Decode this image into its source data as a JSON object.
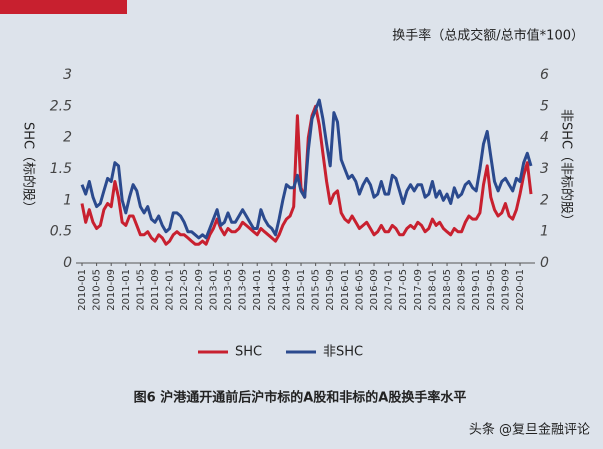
{
  "chart_data": {
    "type": "line",
    "title": "图6 沪港通开通前后沪市标的A股和非标的A股换手率水平",
    "subtitle": "换手率（总成交额/总市值*100）",
    "ylabel": "SHC（标的股）",
    "y2label": "非SHC（非标的股）",
    "categories": [
      "2010-01",
      null,
      null,
      null,
      "2010-05",
      null,
      null,
      null,
      "2010-09",
      null,
      null,
      null,
      "2011-01",
      null,
      null,
      null,
      "2011-05",
      null,
      null,
      null,
      "2011-09",
      null,
      null,
      null,
      "2012-01",
      null,
      null,
      null,
      "2012-05",
      null,
      null,
      null,
      "2012-09",
      null,
      null,
      null,
      "2013-01",
      null,
      null,
      null,
      "2013-05",
      null,
      null,
      null,
      "2013-09",
      null,
      null,
      null,
      "2014-01",
      null,
      null,
      null,
      "2014-05",
      null,
      null,
      null,
      "2014-09",
      null,
      null,
      null,
      "2015-01",
      null,
      null,
      null,
      "2015-05",
      null,
      null,
      null,
      "2015-09",
      null,
      null,
      null,
      "2016-01",
      null,
      null,
      null,
      "2016-05",
      null,
      null,
      null,
      "2016-09",
      null,
      null,
      null,
      "2017-01",
      null,
      null,
      null,
      "2017-05",
      null,
      null,
      null,
      "2017-09",
      null,
      null,
      null,
      "2018-01",
      null,
      null,
      null,
      "2018-05",
      null,
      null,
      null,
      "2018-09",
      null,
      null,
      null,
      "2019-01",
      null,
      null,
      null,
      "2019-05",
      null,
      null,
      null,
      "2019-09",
      null,
      null,
      null,
      "2020-01",
      null,
      null,
      null
    ],
    "series": [
      {
        "name": "SHC",
        "color": "#c8202f",
        "values": [
          0.95,
          0.65,
          0.85,
          0.65,
          0.55,
          0.6,
          0.85,
          0.95,
          0.9,
          1.3,
          1.05,
          0.65,
          0.6,
          0.75,
          0.75,
          0.6,
          0.45,
          0.45,
          0.5,
          0.4,
          0.35,
          0.45,
          0.4,
          0.3,
          0.35,
          0.45,
          0.5,
          0.45,
          0.45,
          0.4,
          0.35,
          0.3,
          0.3,
          0.35,
          0.3,
          0.45,
          0.55,
          0.7,
          0.55,
          0.45,
          0.55,
          0.5,
          0.5,
          0.55,
          0.65,
          0.6,
          0.55,
          0.5,
          0.45,
          0.55,
          0.5,
          0.45,
          0.4,
          0.35,
          0.45,
          0.6,
          0.7,
          0.75,
          0.9,
          2.35,
          1.2,
          1.05,
          2.0,
          2.35,
          2.5,
          2.2,
          1.75,
          1.3,
          0.95,
          1.1,
          1.15,
          0.8,
          0.7,
          0.65,
          0.75,
          0.65,
          0.55,
          0.6,
          0.65,
          0.55,
          0.45,
          0.5,
          0.6,
          0.5,
          0.5,
          0.6,
          0.55,
          0.45,
          0.45,
          0.55,
          0.6,
          0.55,
          0.65,
          0.6,
          0.5,
          0.55,
          0.7,
          0.6,
          0.65,
          0.55,
          0.5,
          0.45,
          0.55,
          0.5,
          0.5,
          0.65,
          0.75,
          0.7,
          0.7,
          0.8,
          1.25,
          1.55,
          1.05,
          0.85,
          0.75,
          0.8,
          0.95,
          0.75,
          0.7,
          0.85,
          1.1,
          1.4,
          1.6,
          1.1
        ]
      },
      {
        "name": "非SHC",
        "color": "#2b4a8e",
        "axis": "y2",
        "values": [
          2.5,
          2.2,
          2.6,
          2.1,
          1.8,
          1.9,
          2.3,
          2.7,
          2.6,
          3.2,
          3.1,
          2.0,
          1.6,
          2.1,
          2.5,
          2.3,
          1.8,
          1.6,
          1.8,
          1.4,
          1.3,
          1.5,
          1.2,
          1.0,
          1.1,
          1.6,
          1.6,
          1.5,
          1.3,
          1.0,
          1.0,
          0.9,
          0.8,
          0.9,
          0.8,
          1.1,
          1.4,
          1.7,
          1.2,
          1.3,
          1.6,
          1.3,
          1.3,
          1.5,
          1.7,
          1.5,
          1.3,
          1.1,
          1.1,
          1.7,
          1.4,
          1.2,
          1.1,
          0.9,
          1.4,
          2.0,
          2.5,
          2.4,
          2.4,
          2.8,
          2.3,
          2.1,
          3.6,
          4.6,
          4.9,
          5.2,
          4.6,
          3.8,
          3.1,
          4.8,
          4.5,
          3.3,
          3.0,
          2.7,
          2.8,
          2.6,
          2.2,
          2.5,
          2.7,
          2.5,
          2.1,
          2.2,
          2.6,
          2.2,
          2.2,
          2.8,
          2.7,
          2.3,
          1.9,
          2.3,
          2.5,
          2.3,
          2.5,
          2.5,
          2.1,
          2.2,
          2.6,
          2.1,
          2.3,
          2.0,
          2.2,
          1.9,
          2.4,
          2.1,
          2.2,
          2.5,
          2.6,
          2.4,
          2.3,
          3.0,
          3.8,
          4.2,
          3.4,
          2.6,
          2.3,
          2.6,
          2.7,
          2.5,
          2.3,
          2.7,
          2.6,
          3.2,
          3.5,
          3.1
        ]
      }
    ],
    "ylim": [
      0,
      3
    ],
    "yticks": [
      0,
      0.5,
      1,
      1.5,
      2,
      2.5,
      3
    ],
    "y2lim": [
      0,
      6
    ],
    "y2ticks": [
      0,
      1,
      2,
      3,
      4,
      5,
      6
    ]
  },
  "watermark": "头条 @复旦金融评论"
}
